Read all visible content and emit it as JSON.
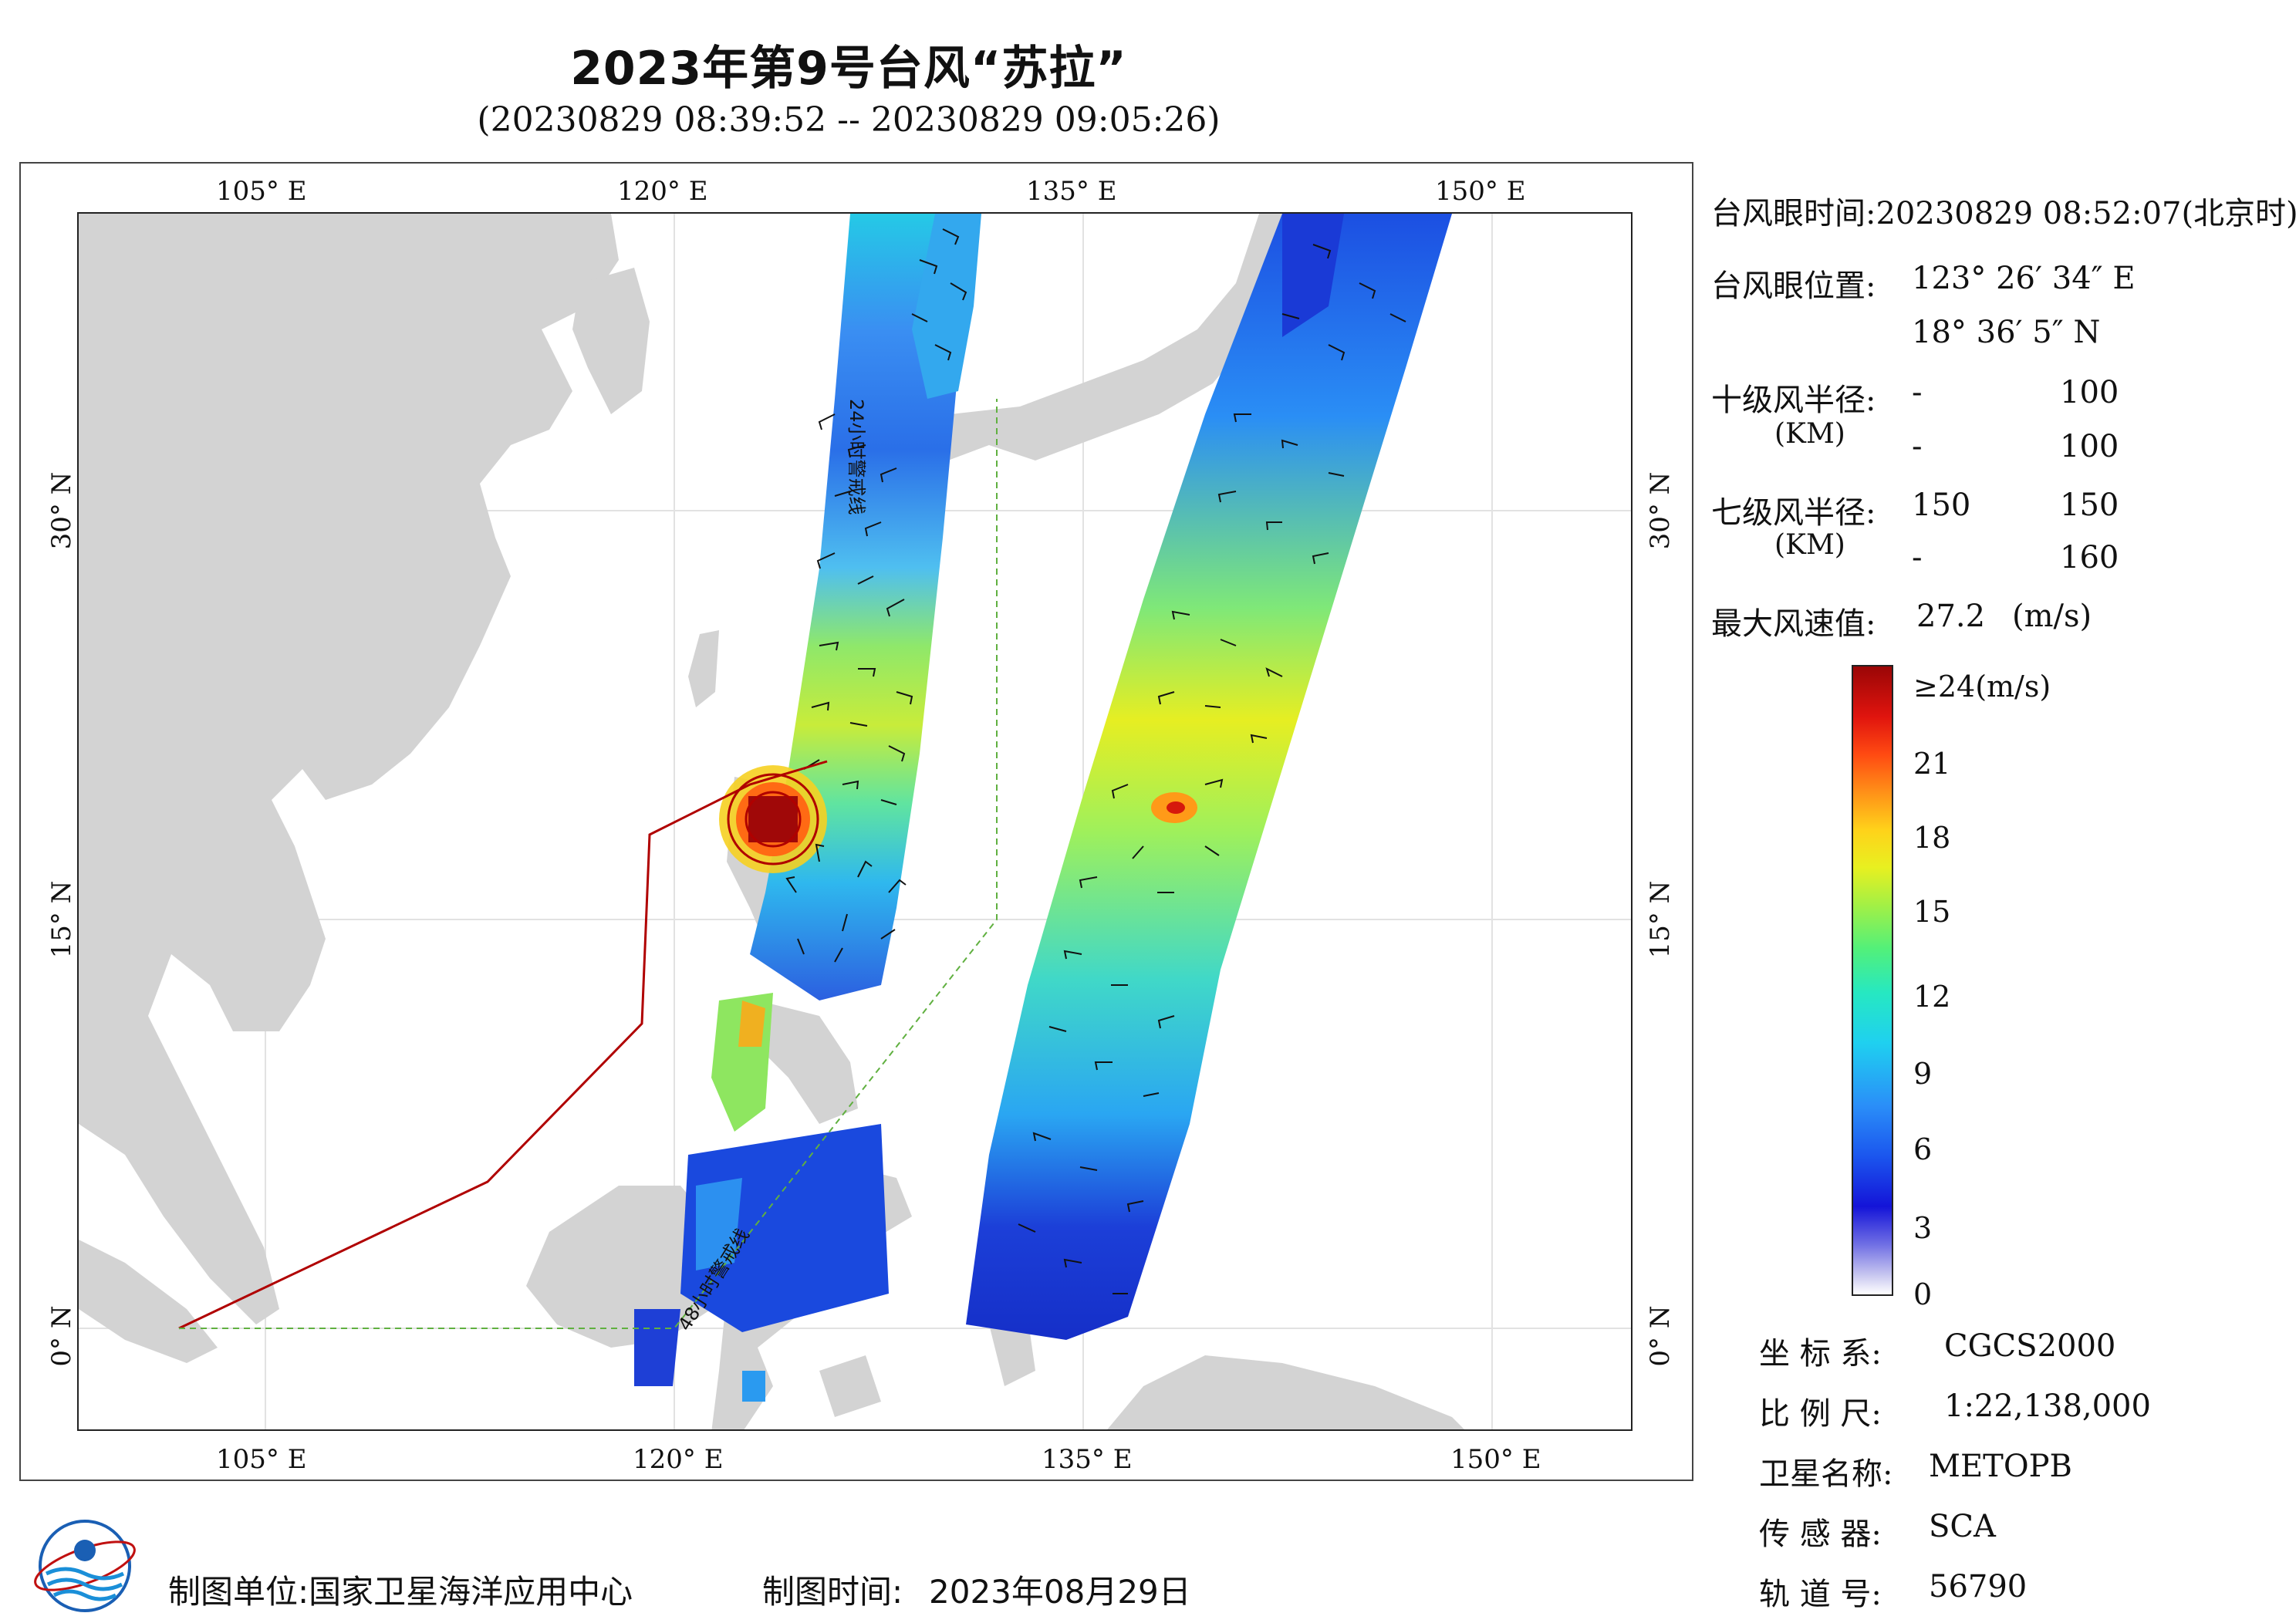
{
  "title": "2023年第9号台风“苏拉”",
  "subtitle": "(20230829 08:39:52 -- 20230829 09:05:26)",
  "map": {
    "lon_ticks": [
      "105° E",
      "120° E",
      "135° E",
      "150° E"
    ],
    "lat_ticks": [
      "30° N",
      "15° N",
      "0° N"
    ],
    "lon_range": [
      98,
      155
    ],
    "lat_range": [
      -3.8,
      41
    ],
    "warning_line_24h": "24小时警戒线",
    "warning_line_48h": "48小时警戒线",
    "colors": {
      "land": "#d3d3d3",
      "ocean": "#ffffff",
      "warning_24h": "#b00000",
      "warning_48h": "#60b040"
    }
  },
  "typhoon_info": {
    "eye_time_label": "台风眼时间:",
    "eye_time": "20230829 08:52:07(北京时)",
    "eye_position_label": "台风眼位置:",
    "eye_lon": "123° 26′ 34″ E",
    "eye_lat": "18° 36′ 5″ N",
    "r10_label": "十级风半径:",
    "r10_unit": "(KM)",
    "r10_row1": [
      "-",
      "100"
    ],
    "r10_row2": [
      "-",
      "100"
    ],
    "r7_label": "七级风半径:",
    "r7_unit": "(KM)",
    "r7_row1": [
      "150",
      "150"
    ],
    "r7_row2": [
      "-",
      "160"
    ],
    "max_wind_label": "最大风速值:",
    "max_wind_value": "27.2",
    "max_wind_unit": "(m/s)"
  },
  "colorbar": {
    "top_label": "≥24(m/s)",
    "ticks": [
      "21",
      "18",
      "15",
      "12",
      "9",
      "6",
      "3",
      "0"
    ]
  },
  "meta": {
    "crs_label": "坐 标 系:",
    "crs_value": "CGCS2000",
    "scale_label": "比 例 尺:",
    "scale_value": "1:22,138,000",
    "satellite_label": "卫星名称:",
    "satellite_value": "METOPB",
    "sensor_label": "传 感 器:",
    "sensor_value": "SCA",
    "orbit_label": "轨 道 号:",
    "orbit_value": "56790"
  },
  "footer": {
    "producer_label": "制图单位:",
    "producer_value": "国家卫星海洋应用中心",
    "date_label": "制图时间:",
    "date_value": "2023年08月29日"
  }
}
